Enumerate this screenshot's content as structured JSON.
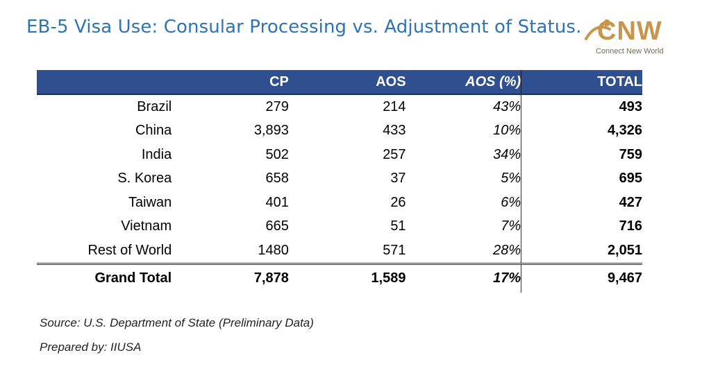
{
  "title": "EB-5 Visa Use: Consular Processing vs. Adjustment of Status.",
  "logo": {
    "word": "CNW",
    "tagline": "Connect New World",
    "color": "#c9954c"
  },
  "table": {
    "headers": [
      "",
      "CP",
      "AOS",
      "AOS (%)",
      "TOTAL"
    ],
    "rows": [
      {
        "country": "Brazil",
        "cp": "279",
        "aos": "214",
        "pct": "43%",
        "total": "493"
      },
      {
        "country": "China",
        "cp": "3,893",
        "aos": "433",
        "pct": "10%",
        "total": "4,326"
      },
      {
        "country": "India",
        "cp": "502",
        "aos": "257",
        "pct": "34%",
        "total": "759"
      },
      {
        "country": "S. Korea",
        "cp": "658",
        "aos": "37",
        "pct": "5%",
        "total": "695"
      },
      {
        "country": "Taiwan",
        "cp": "401",
        "aos": "26",
        "pct": "6%",
        "total": "427"
      },
      {
        "country": "Vietnam",
        "cp": "665",
        "aos": "51",
        "pct": "7%",
        "total": "716"
      },
      {
        "country": "Rest of World",
        "cp": "1480",
        "aos": "571",
        "pct": "28%",
        "total": "2,051"
      }
    ],
    "grand_total": {
      "label": "Grand Total",
      "cp": "7,878",
      "aos": "1,589",
      "pct": "17%",
      "total": "9,467"
    },
    "header_color": "#2f4f91"
  },
  "source": "Source: U.S. Department of State (Preliminary Data)",
  "prepared": "Prepared by: IIUSA"
}
